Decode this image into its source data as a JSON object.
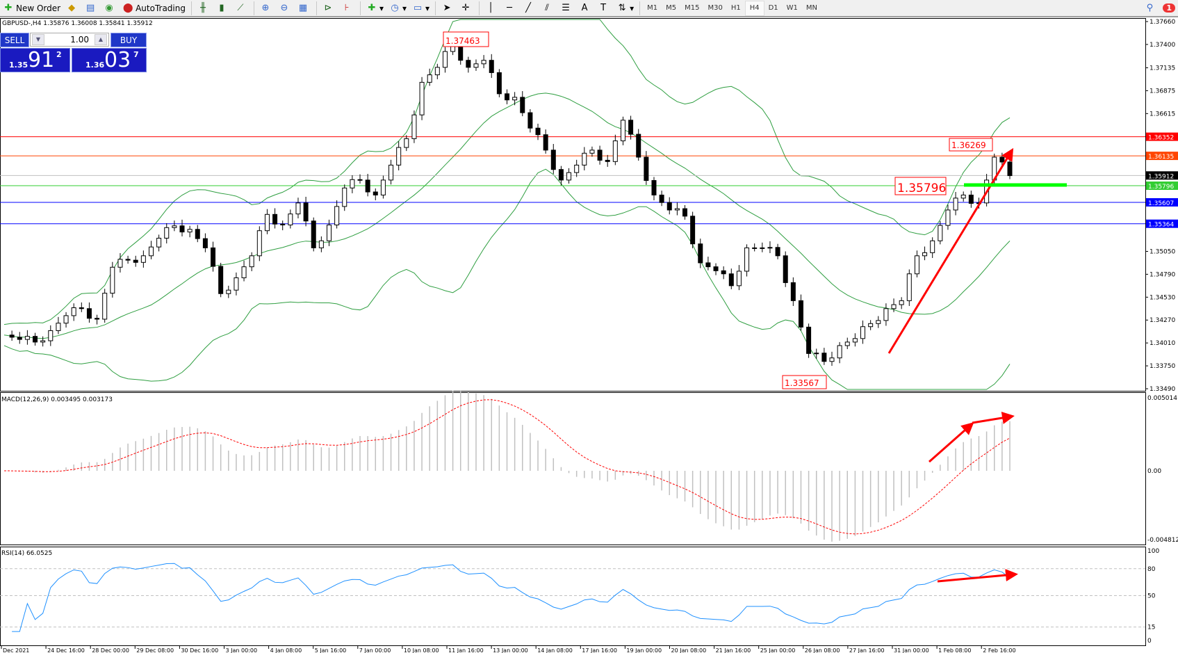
{
  "toolbar": {
    "new_order": "New Order",
    "autotrading": "AutoTrading",
    "timeframes": [
      "M1",
      "M5",
      "M15",
      "M30",
      "H1",
      "H4",
      "D1",
      "W1",
      "MN"
    ],
    "active_timeframe": "H4",
    "notification_count": "1"
  },
  "chart": {
    "symbol_line": "GBPUSD-,H4  1.35876 1.36008 1.35841 1.35912",
    "one_click": {
      "sell_label": "SELL",
      "buy_label": "BUY",
      "lot": "1.00",
      "sell_price": {
        "small": "1.35",
        "big": "91",
        "pip": "2"
      },
      "buy_price": {
        "small": "1.36",
        "big": "03",
        "pip": "7"
      }
    },
    "price_axis": [
      "1.37660",
      "1.37400",
      "1.37135",
      "1.36875",
      "1.36615",
      "1.35050",
      "1.34790",
      "1.34530",
      "1.34270",
      "1.34010",
      "1.33750",
      "1.33490"
    ],
    "levels": [
      {
        "label": "1.36352",
        "color": "#ff0000"
      },
      {
        "label": "1.36135",
        "color": "#ff4500"
      },
      {
        "label": "1.35912",
        "color": "#000000",
        "line": "#c0c0c0"
      },
      {
        "label": "1.35796",
        "color": "#32cd32"
      },
      {
        "label": "1.35607",
        "color": "#0000ff"
      },
      {
        "label": "1.35364",
        "color": "#0000ff"
      }
    ],
    "annotations": [
      "1.37463",
      "1.36269",
      "1.35796",
      "1.33567"
    ],
    "date_axis": [
      "Dec 2021",
      "24 Dec 16:00",
      "28 Dec 00:00",
      "29 Dec 08:00",
      "30 Dec 16:00",
      "3 Jan 00:00",
      "4 Jan 08:00",
      "5 Jan 16:00",
      "7 Jan 00:00",
      "10 Jan 08:00",
      "11 Jan 16:00",
      "13 Jan 00:00",
      "14 Jan 08:00",
      "17 Jan 16:00",
      "19 Jan 00:00",
      "20 Jan 08:00",
      "21 Jan 16:00",
      "25 Jan 00:00",
      "26 Jan 08:00",
      "27 Jan 16:00",
      "31 Jan 00:00",
      "1 Feb 08:00",
      "2 Feb 16:00"
    ],
    "macd": {
      "title": "MACD(12,26,9) 0.003495 0.003173",
      "axis": [
        "0.005014",
        "0.00",
        "-0.004812"
      ]
    },
    "rsi": {
      "title": "RSI(14) 66.0525",
      "axis": [
        "100",
        "80",
        "50",
        "15",
        "0"
      ]
    }
  },
  "chart_data": {
    "type": "candlestick",
    "symbol": "GBPUSD",
    "timeframe": "H4",
    "ylim": [
      1.3349,
      1.3766
    ],
    "approx_closes": [
      1.341,
      1.3405,
      1.3402,
      1.3415,
      1.3432,
      1.344,
      1.3428,
      1.3487,
      1.3495,
      1.35,
      1.352,
      1.3534,
      1.353,
      1.3509,
      1.3457,
      1.3475,
      1.35,
      1.3547,
      1.3535,
      1.356,
      1.3509,
      1.3535,
      1.3577,
      1.3586,
      1.3569,
      1.3603,
      1.3633,
      1.3697,
      1.3714,
      1.374,
      1.3714,
      1.3722,
      1.3684,
      1.368,
      1.3645,
      1.362,
      1.3586,
      1.3603,
      1.362,
      1.3607,
      1.3654,
      1.3612,
      1.3569,
      1.3552,
      1.3545,
      1.3492,
      1.3483,
      1.3466,
      1.3509,
      1.3509,
      1.35,
      1.3449,
      1.3389,
      1.338,
      1.3398,
      1.3406,
      1.3423,
      1.344,
      1.3449,
      1.35,
      1.3517,
      1.3552,
      1.3569,
      1.356,
      1.3612,
      1.3591
    ],
    "bollinger": {
      "period": 20,
      "deviation": 2,
      "color": "#2e9e40"
    },
    "macd_params": [
      12,
      26,
      9
    ],
    "rsi_period": 14,
    "rsi_levels": [
      80,
      50,
      15
    ]
  },
  "colors": {
    "arrows": "#ff0000",
    "macd_hist": "#c0c0c0",
    "macd_signal": "#ff0000",
    "rsi": "#1e90ff",
    "green_marker": "#00ff00"
  }
}
